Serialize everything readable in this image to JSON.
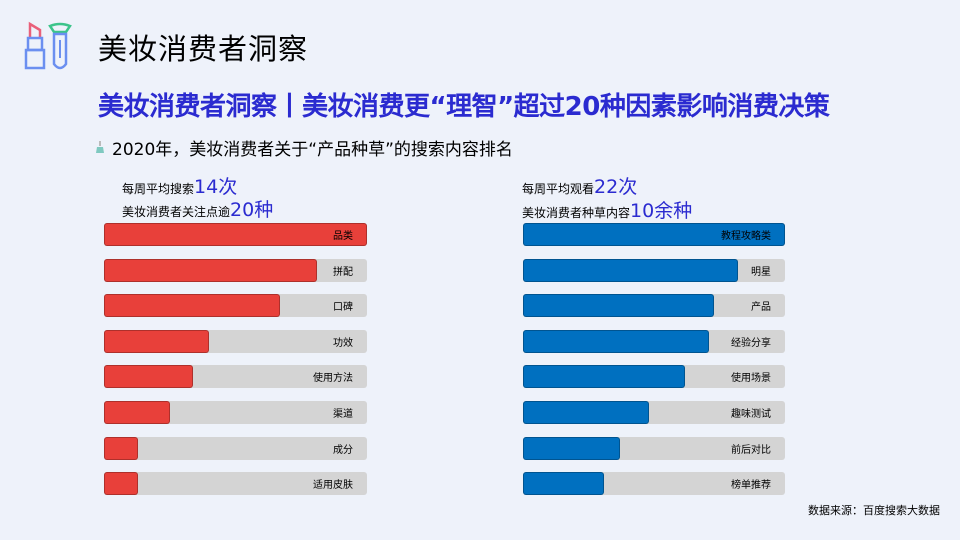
{
  "header": {
    "title": "美妆消费者洞察",
    "icon": "lipstick-brush-icon"
  },
  "headline": "美妆消费者洞察丨美妆消费更“理智”超过20种因素影响消费决策",
  "subtitle": "2020年，美妆消费者关于“产品种草”的搜索内容排名",
  "source": "数据来源：百度搜索大数据",
  "colors": {
    "left_bar": "#e8403a",
    "right_bar": "#0070c0",
    "track": "#d4d4d4",
    "accent": "#2b2bd0"
  },
  "chart_data": [
    {
      "type": "bar",
      "orientation": "horizontal",
      "unit": "relative percent of max",
      "stats": [
        {
          "label": "每周平均搜索",
          "value": "14次"
        },
        {
          "label": "美妆消费者关注点逾",
          "value": "20种"
        }
      ],
      "categories": [
        "品类",
        "拼配",
        "口碑",
        "功效",
        "使用方法",
        "渠道",
        "成分",
        "适用皮肤"
      ],
      "values": [
        100,
        81,
        67,
        40,
        34,
        25,
        13,
        13
      ]
    },
    {
      "type": "bar",
      "orientation": "horizontal",
      "unit": "relative percent of max",
      "stats": [
        {
          "label": "每周平均观看",
          "value": "22次"
        },
        {
          "label": "美妆消费者种草内容",
          "value": "10余种"
        }
      ],
      "categories": [
        "教程攻略类",
        "明星",
        "产品",
        "经验分享",
        "使用场景",
        "趣味测试",
        "前后对比",
        "榜单推荐"
      ],
      "values": [
        100,
        82,
        73,
        71,
        62,
        48,
        37,
        31
      ]
    }
  ]
}
